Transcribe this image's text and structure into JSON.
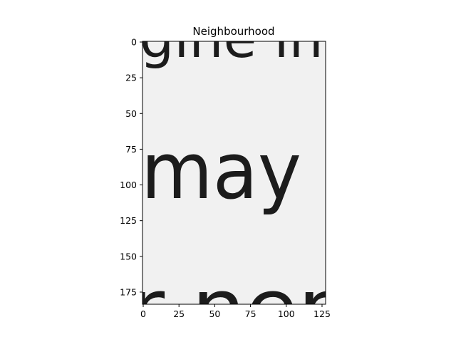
{
  "figure": {
    "title": "Neighbourhood",
    "image_text_lines": [
      {
        "text": "gine inc",
        "partial": true
      },
      {
        "text": "may",
        "partial": false
      },
      {
        "text": "r ner",
        "partial": true
      }
    ],
    "colors": {
      "background": "#f1f1f1",
      "ink": "#1c1c1c",
      "axis": "#000000"
    }
  },
  "chart_data": {
    "type": "heatmap",
    "title": "Neighbourhood",
    "xlabel": "",
    "ylabel": "",
    "xlim": [
      -0.5,
      127.5
    ],
    "ylim": [
      183.5,
      -0.5
    ],
    "xticks": [
      0,
      25,
      50,
      75,
      100,
      125
    ],
    "yticks": [
      0,
      25,
      50,
      75,
      100,
      125,
      150,
      175
    ],
    "xtick_labels": [
      "0",
      "25",
      "50",
      "75",
      "100",
      "125"
    ],
    "ytick_labels": [
      "0",
      "25",
      "50",
      "75",
      "100",
      "125",
      "150",
      "175"
    ],
    "colormap": "gray",
    "grid": false,
    "legend": "none"
  }
}
